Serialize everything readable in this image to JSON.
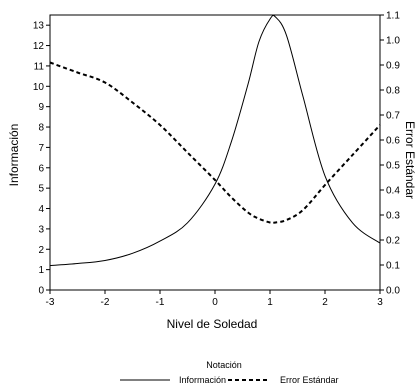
{
  "chart_data": {
    "type": "line",
    "xlabel": "Nivel de Soledad",
    "ylabel_left": "Información",
    "ylabel_right": "Error Estándar",
    "xlim": [
      -3,
      3
    ],
    "ylim_left": [
      0,
      13.5
    ],
    "ylim_right": [
      0,
      1.1
    ],
    "x_ticks": [
      -3,
      -2,
      -1,
      0,
      1,
      2,
      3
    ],
    "y_left_ticks": [
      0,
      1,
      2,
      3,
      4,
      5,
      6,
      7,
      8,
      9,
      10,
      11,
      12,
      13
    ],
    "y_right_ticks": [
      "0.0",
      "0.1",
      "0.2",
      "0.3",
      "0.4",
      "0.5",
      "0.6",
      "0.7",
      "0.8",
      "0.9",
      "1.0",
      "1.1"
    ],
    "legend": {
      "title": "Notación",
      "position": "bottom-center",
      "items": [
        "Información",
        "Error Estándar"
      ]
    },
    "series": [
      {
        "name": "Información",
        "axis": "left",
        "style": "solid",
        "x": [
          -3,
          -2.5,
          -2,
          -1.5,
          -1,
          -0.5,
          0,
          0.3,
          0.6,
          0.8,
          1.0,
          1.1,
          1.3,
          1.6,
          2.0,
          2.5,
          3
        ],
        "values": [
          1.2,
          1.3,
          1.45,
          1.8,
          2.4,
          3.3,
          5.2,
          7.3,
          10.1,
          12.2,
          13.3,
          13.4,
          12.5,
          9.5,
          5.6,
          3.3,
          2.3
        ]
      },
      {
        "name": "Error Estándar",
        "axis": "right",
        "style": "dashed",
        "x": [
          -3,
          -2.5,
          -2,
          -1.5,
          -1,
          -0.5,
          0,
          0.3,
          0.6,
          0.8,
          1.0,
          1.1,
          1.3,
          1.6,
          2.0,
          2.5,
          3
        ],
        "values": [
          0.91,
          0.87,
          0.83,
          0.75,
          0.66,
          0.55,
          0.44,
          0.37,
          0.31,
          0.285,
          0.27,
          0.27,
          0.28,
          0.32,
          0.42,
          0.54,
          0.66
        ]
      }
    ]
  }
}
